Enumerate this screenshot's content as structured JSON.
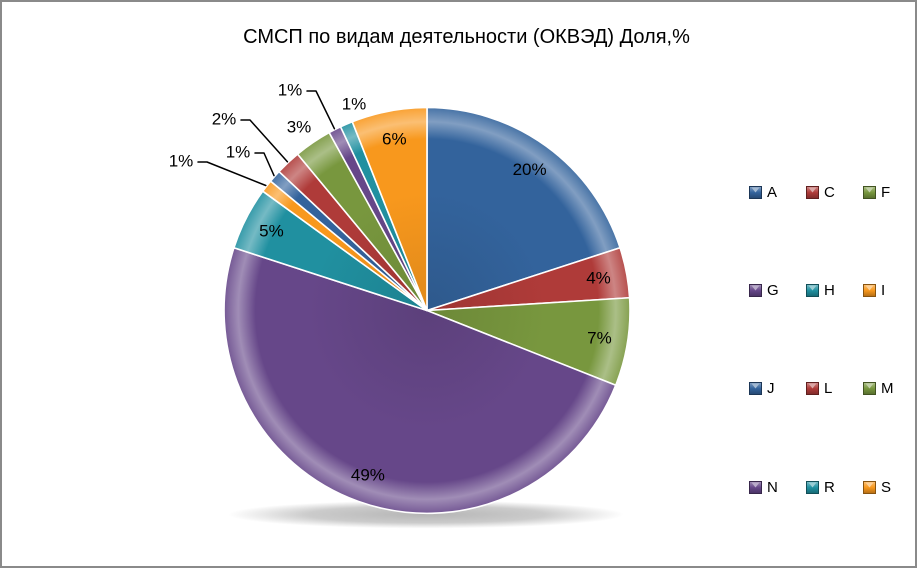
{
  "page": {
    "background": "#ffffff",
    "border_color": "#8a8a8a"
  },
  "chart_data": {
    "type": "pie",
    "title": "СМСП по видам деятельности (ОКВЭД) Доля,%",
    "unit": "%",
    "direction": "clockwise",
    "start_angle_deg": 0,
    "grid": false,
    "legend_position": "right",
    "legend_columns": 3,
    "categories": [
      "A",
      "C",
      "F",
      "G",
      "H",
      "I",
      "J",
      "L",
      "M",
      "N",
      "R",
      "S"
    ],
    "values": [
      20,
      4,
      7,
      49,
      5,
      1,
      1,
      2,
      3,
      1,
      1,
      6
    ],
    "labels": [
      "20%",
      "4%",
      "7%",
      "49%",
      "5%",
      "1%",
      "1%",
      "2%",
      "3%",
      "1%",
      "1%",
      "6%"
    ],
    "colors": [
      "#33639C",
      "#AF3B39",
      "#78973E",
      "#664789",
      "#2090A0",
      "#F8981D",
      "#33639C",
      "#AF3B39",
      "#78973E",
      "#664789",
      "#2090A0",
      "#F8981D"
    ],
    "label_placement": [
      "inside",
      "inside",
      "inside",
      "inside",
      "inside",
      "outside",
      "outside",
      "outside",
      "outside",
      "outside",
      "outside",
      "inside"
    ],
    "outside_label_pos": {
      "I": [
        179,
        159
      ],
      "J": [
        236,
        150
      ],
      "L": [
        222,
        117
      ],
      "M": [
        297,
        125
      ],
      "N": [
        288,
        88
      ],
      "R": [
        352,
        102
      ]
    },
    "leader_lines": [
      "I",
      "J",
      "L",
      "N"
    ]
  }
}
